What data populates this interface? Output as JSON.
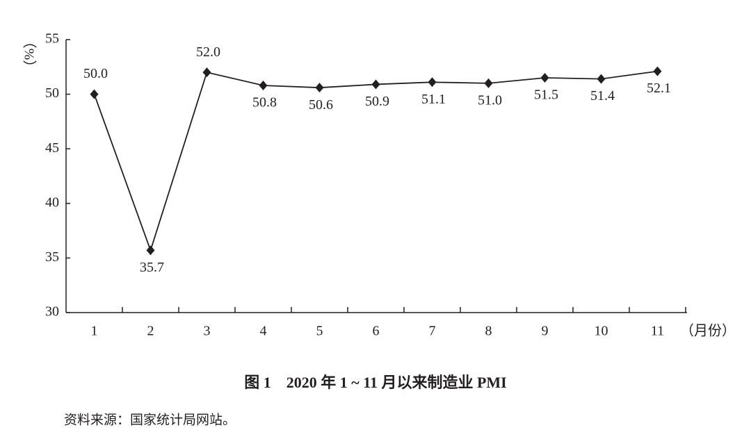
{
  "chart_data": {
    "type": "line",
    "title": "图 1　2020 年 1 ~ 11 月以来制造业 PMI",
    "source": "资料来源：国家统计局网站。",
    "ylabel": "（%）",
    "xlabel": "（月份）",
    "categories": [
      "1",
      "2",
      "3",
      "4",
      "5",
      "6",
      "7",
      "8",
      "9",
      "10",
      "11"
    ],
    "series": [
      {
        "name": "制造业 PMI",
        "color": "#231f20",
        "values": [
          50.0,
          35.7,
          52.0,
          50.8,
          50.6,
          50.9,
          51.1,
          51.0,
          51.5,
          51.4,
          52.1
        ],
        "value_labels": [
          "50.0",
          "35.7",
          "52.0",
          "50.8",
          "50.6",
          "50.9",
          "51.1",
          "51.0",
          "51.5",
          "51.4",
          "52.1"
        ]
      }
    ],
    "ylim": [
      30,
      55
    ],
    "yticks": [
      30,
      35,
      40,
      45,
      50,
      55
    ],
    "grid": false
  }
}
